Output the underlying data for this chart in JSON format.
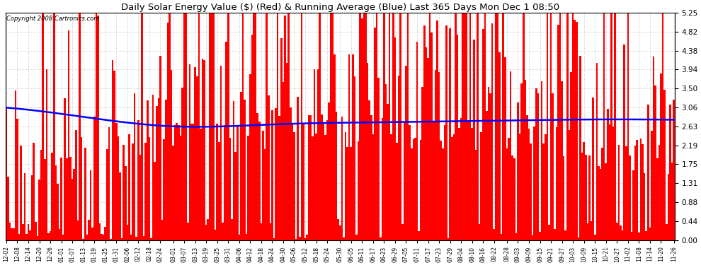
{
  "title": "Daily Solar Energy Value ($) (Red) & Running Average (Blue) Last 365 Days Mon Dec 1 08:50",
  "copyright": "Copyright 2008 Cartronics.com",
  "bar_color": "#FF0000",
  "line_color": "#0000FF",
  "background_color": "#FFFFFF",
  "grid_color": "#BBBBBB",
  "ylim": [
    0.0,
    5.25
  ],
  "yticks": [
    0.0,
    0.44,
    0.88,
    1.31,
    1.75,
    2.19,
    2.63,
    3.06,
    3.5,
    3.94,
    4.38,
    4.82,
    5.25
  ],
  "num_days": 365,
  "x_tick_labels": [
    "12-02",
    "12-08",
    "12-14",
    "12-20",
    "12-26",
    "01-01",
    "01-07",
    "01-13",
    "01-19",
    "01-25",
    "01-31",
    "02-06",
    "02-12",
    "02-18",
    "02-24",
    "03-01",
    "03-07",
    "03-13",
    "03-19",
    "03-25",
    "03-31",
    "04-06",
    "04-12",
    "04-18",
    "04-24",
    "04-30",
    "05-06",
    "05-12",
    "05-18",
    "05-24",
    "05-30",
    "06-05",
    "06-11",
    "06-17",
    "06-23",
    "06-29",
    "07-05",
    "07-11",
    "07-17",
    "07-23",
    "07-29",
    "08-04",
    "08-10",
    "08-16",
    "08-22",
    "08-28",
    "09-03",
    "09-09",
    "09-15",
    "09-21",
    "09-27",
    "10-03",
    "10-09",
    "10-15",
    "10-21",
    "10-27",
    "11-02",
    "11-08",
    "11-14",
    "11-20",
    "11-26"
  ],
  "avg_line_points_x": [
    0,
    50,
    90,
    150,
    200,
    250,
    300,
    364
  ],
  "avg_line_points_y": [
    3.06,
    2.8,
    2.63,
    2.68,
    2.72,
    2.75,
    2.78,
    2.78
  ]
}
